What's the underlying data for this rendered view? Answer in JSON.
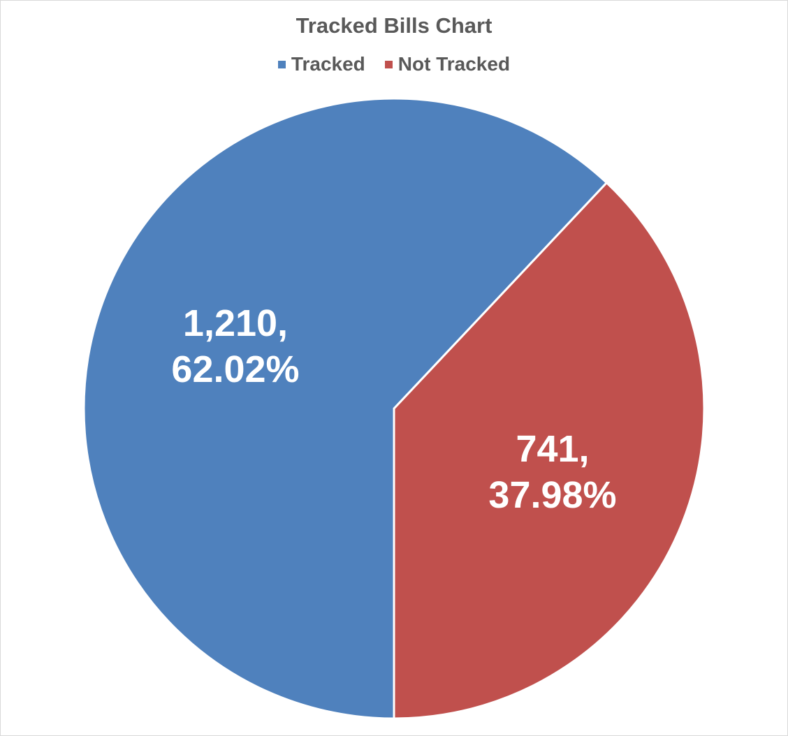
{
  "chart_data": {
    "type": "pie",
    "title": "Tracked Bills Chart",
    "categories": [
      "Tracked",
      "Not Tracked"
    ],
    "values": [
      1210,
      741
    ],
    "percentages": [
      62.02,
      37.98
    ],
    "data_labels": [
      {
        "value": "1,210,",
        "percent": "62.02%"
      },
      {
        "value": "741,",
        "percent": "37.98%"
      }
    ],
    "colors": [
      "#4F81BD",
      "#C0504D"
    ],
    "legend": {
      "position": "top",
      "entries": [
        "Tracked",
        "Not Tracked"
      ]
    }
  }
}
